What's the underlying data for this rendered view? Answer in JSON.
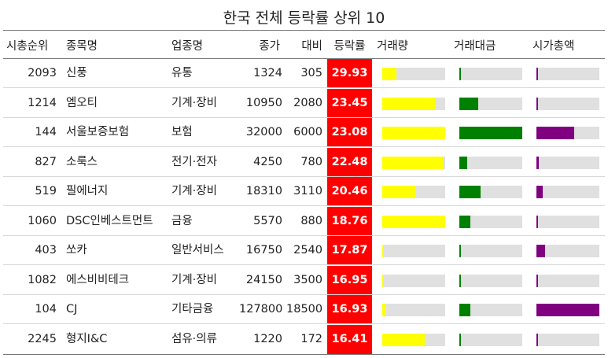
{
  "chart_data": {
    "type": "table",
    "title": "한국 전체 등락률 상위 10",
    "columns": [
      "시총순위",
      "종목명",
      "업종명",
      "종가",
      "대비",
      "등락률",
      "거래량",
      "거래대금",
      "시가총액"
    ],
    "bar_colors": {
      "volume": "#ffff00",
      "amount": "#008000",
      "mcap": "#800080"
    },
    "rate_color": "#ff0000",
    "rows": [
      {
        "rank": "2093",
        "name": "신풍",
        "sector": "유통",
        "close": "1324",
        "change": "305",
        "rate": "29.93",
        "volume": 0.22,
        "amount": 0.015,
        "mcap": 0.015
      },
      {
        "rank": "1214",
        "name": "엠오티",
        "sector": "기계·장비",
        "close": "10950",
        "change": "2080",
        "rate": "23.45",
        "volume": 0.84,
        "amount": 0.3,
        "mcap": 0.025
      },
      {
        "rank": "144",
        "name": "서울보증보험",
        "sector": "보험",
        "close": "32000",
        "change": "6000",
        "rate": "23.08",
        "volume": 1.0,
        "amount": 1.0,
        "mcap": 0.6
      },
      {
        "rank": "827",
        "name": "소룩스",
        "sector": "전기·전자",
        "close": "4250",
        "change": "780",
        "rate": "22.48",
        "volume": 0.98,
        "amount": 0.13,
        "mcap": 0.04
      },
      {
        "rank": "519",
        "name": "필에너지",
        "sector": "기계·장비",
        "close": "18310",
        "change": "3110",
        "rate": "20.46",
        "volume": 0.54,
        "amount": 0.34,
        "mcap": 0.1
      },
      {
        "rank": "1060",
        "name": "DSC인베스트먼트",
        "sector": "금융",
        "close": "5570",
        "change": "880",
        "rate": "18.76",
        "volume": 1.0,
        "amount": 0.18,
        "mcap": 0.025
      },
      {
        "rank": "403",
        "name": "쏘카",
        "sector": "일반서비스",
        "close": "16750",
        "change": "2540",
        "rate": "17.87",
        "volume": 0.02,
        "amount": 0.015,
        "mcap": 0.14
      },
      {
        "rank": "1082",
        "name": "에스비비테크",
        "sector": "기계·장비",
        "close": "24150",
        "change": "3500",
        "rate": "16.95",
        "volume": 0.02,
        "amount": 0.015,
        "mcap": 0.03
      },
      {
        "rank": "104",
        "name": "CJ",
        "sector": "기타금융",
        "close": "127800",
        "change": "18500",
        "rate": "16.93",
        "volume": 0.05,
        "amount": 0.17,
        "mcap": 1.0
      },
      {
        "rank": "2245",
        "name": "형지I&C",
        "sector": "섬유·의류",
        "close": "1220",
        "change": "172",
        "rate": "16.41",
        "volume": 0.67,
        "amount": 0.03,
        "mcap": 0.015
      }
    ]
  }
}
